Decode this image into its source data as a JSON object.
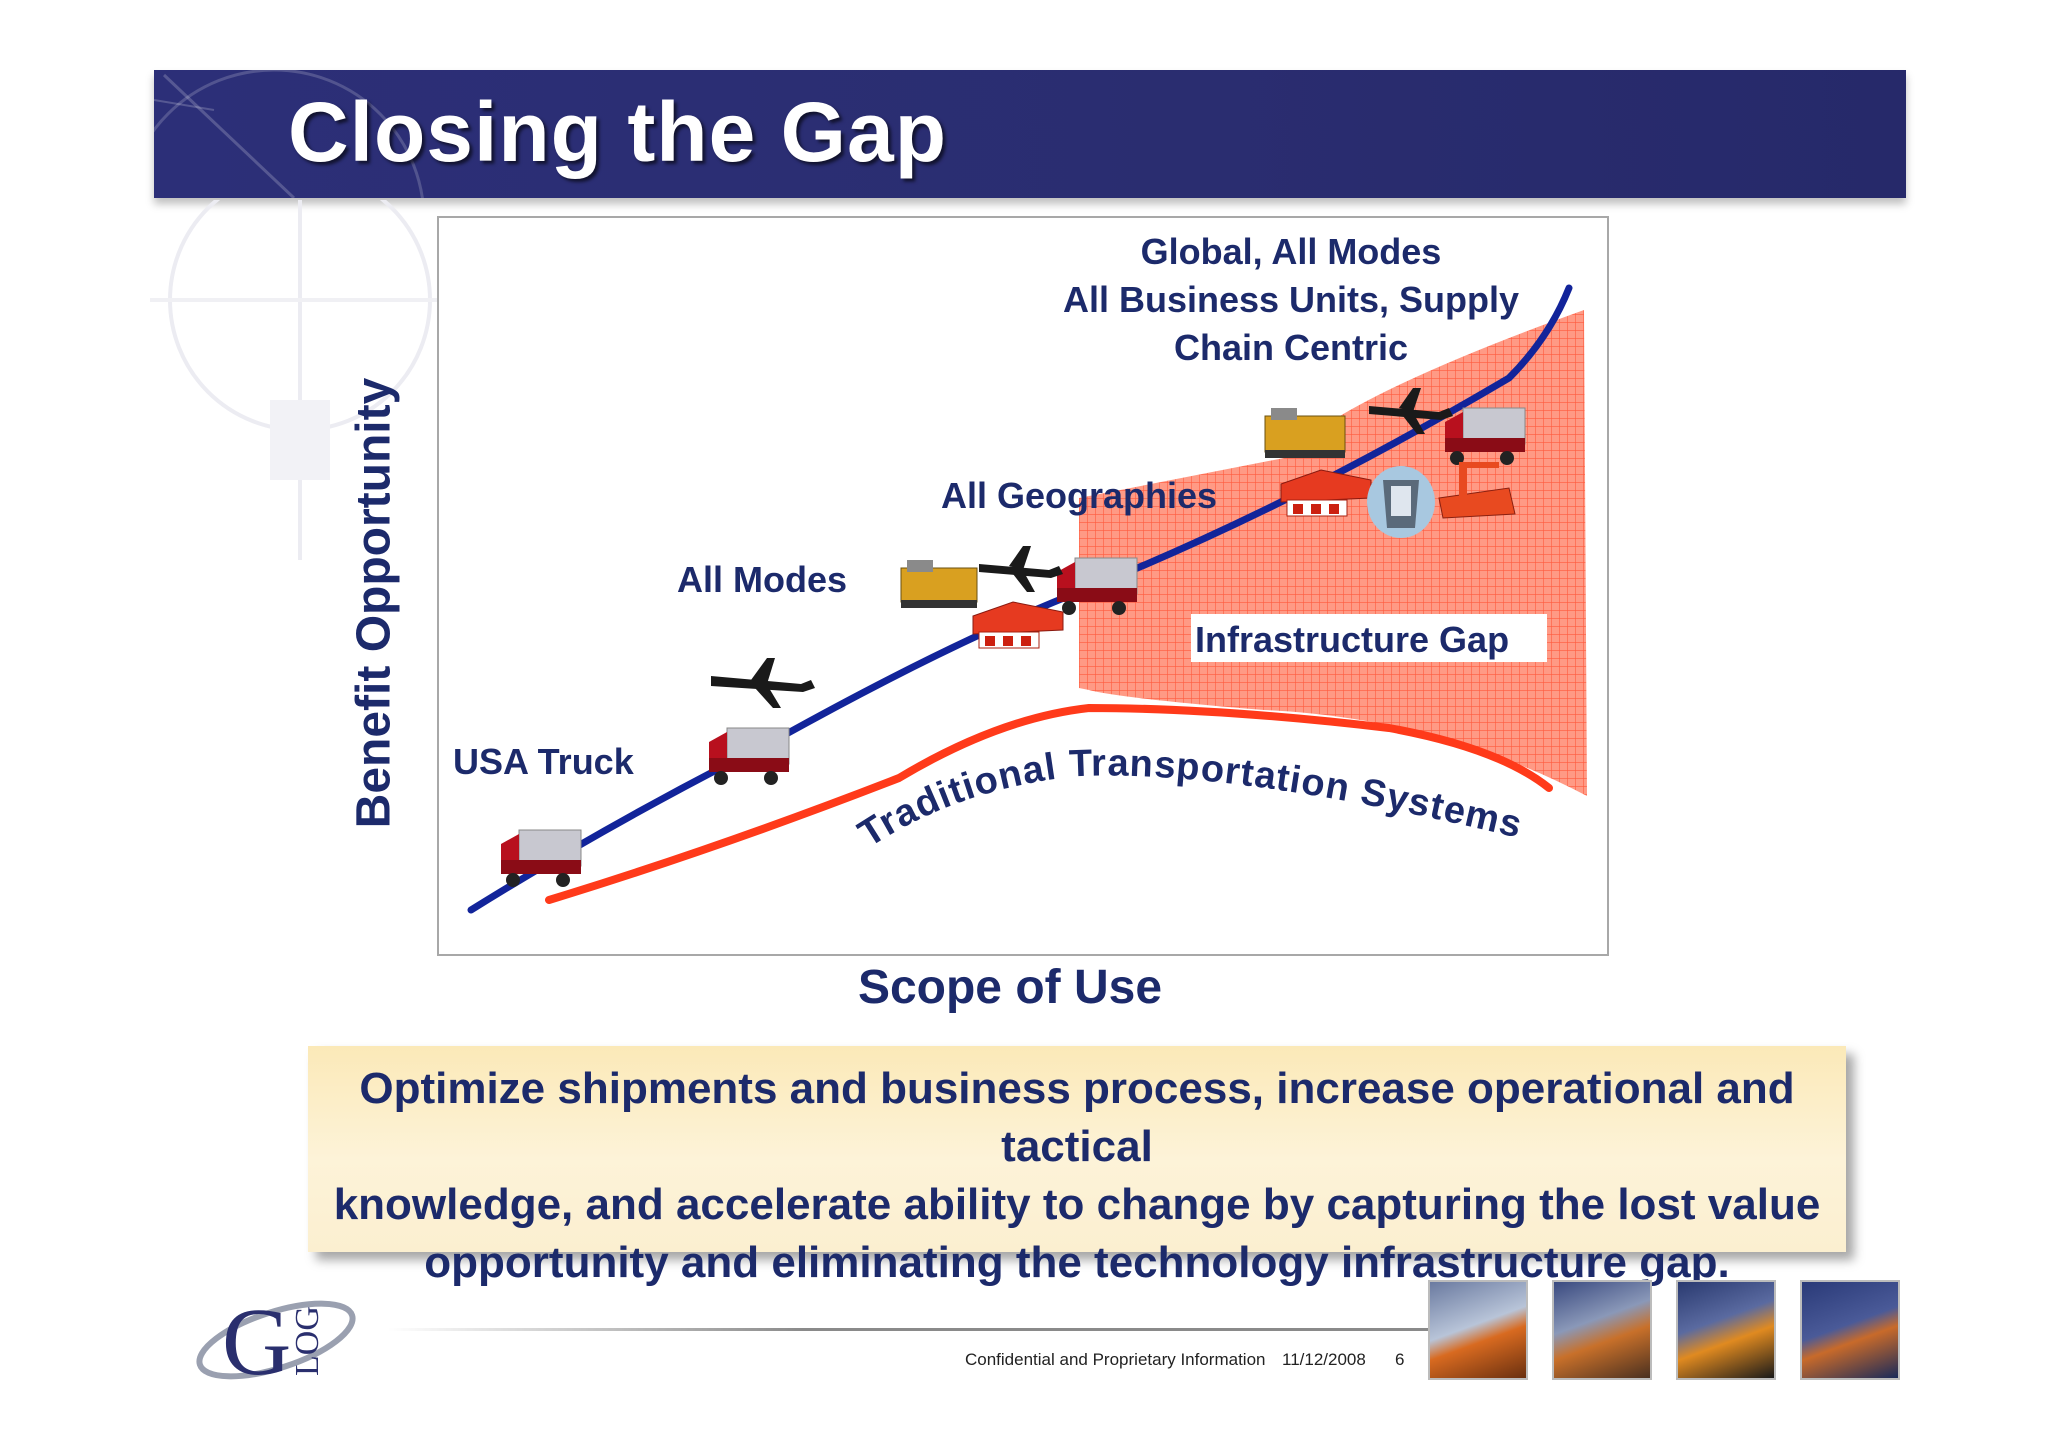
{
  "title": "Closing the Gap",
  "diagram": {
    "y_axis_label": "Benefit Opportunity",
    "x_axis_label": "Scope of Use",
    "stage_labels": {
      "usa_truck": "USA Truck",
      "all_modes": "All Modes",
      "all_geographies": "All Geographies",
      "global_line1": "Global, All Modes",
      "global_line2": "All Business Units, Supply",
      "global_line3": "Chain Centric"
    },
    "gap_label": "Infrastructure Gap",
    "traditional_curve_label": "Traditional Transportation Systems",
    "colors": {
      "opportunity_line": "#12249a",
      "traditional_line": "#ff3a1a",
      "gap_fill": "#ff8a72"
    }
  },
  "callout": {
    "line1": "Optimize shipments and business process, increase operational and tactical",
    "line2": "knowledge, and accelerate ability to change by capturing the lost value",
    "line3": "opportunity and eliminating the technology infrastructure gap."
  },
  "footer": {
    "confidential": "Confidential and Proprietary Information",
    "date": "11/12/2008",
    "page": "6",
    "logo_text": "G-LOG"
  }
}
